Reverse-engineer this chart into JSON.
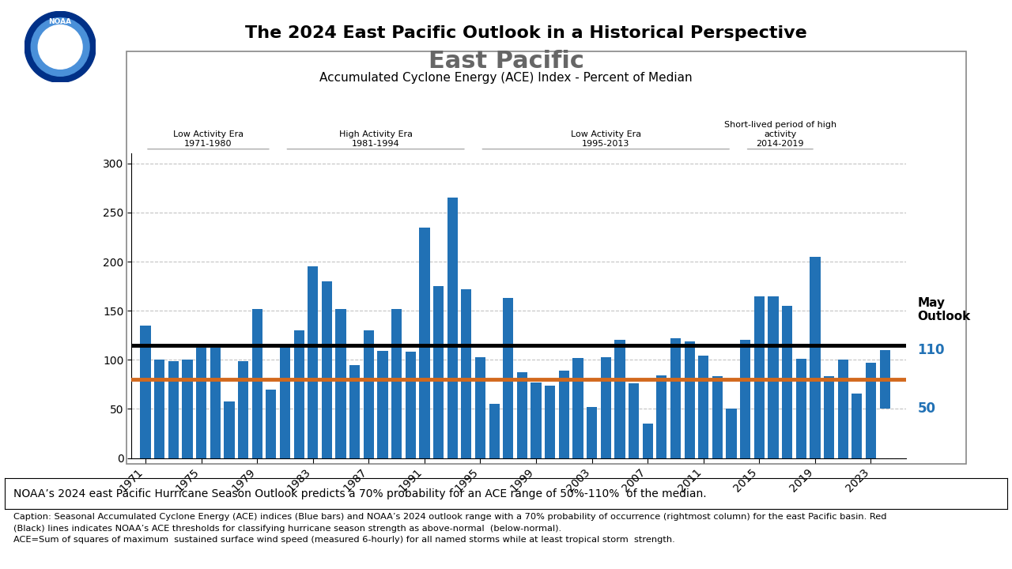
{
  "title_main": "The 2024 East Pacific Outlook in a Historical Perspective",
  "title_chart": "East Pacific",
  "subtitle_chart": "Accumulated Cyclone Energy (ACE) Index - Percent of Median",
  "years": [
    1971,
    1972,
    1973,
    1974,
    1975,
    1976,
    1977,
    1978,
    1979,
    1980,
    1981,
    1982,
    1983,
    1984,
    1985,
    1986,
    1987,
    1988,
    1989,
    1990,
    1991,
    1992,
    1993,
    1994,
    1995,
    1996,
    1997,
    1998,
    1999,
    2000,
    2001,
    2002,
    2003,
    2004,
    2005,
    2006,
    2007,
    2008,
    2009,
    2010,
    2011,
    2012,
    2013,
    2014,
    2015,
    2016,
    2017,
    2018,
    2019,
    2020,
    2021,
    2022,
    2023
  ],
  "values": [
    135,
    100,
    99,
    100,
    112,
    112,
    58,
    99,
    152,
    70,
    115,
    130,
    195,
    180,
    152,
    95,
    130,
    109,
    152,
    108,
    235,
    175,
    265,
    172,
    103,
    55,
    163,
    87,
    77,
    74,
    89,
    102,
    52,
    103,
    120,
    76,
    35,
    84,
    122,
    119,
    104,
    83,
    50,
    120,
    165,
    165,
    155,
    101,
    205,
    83,
    100,
    66,
    97
  ],
  "outlook_low": 50,
  "outlook_high": 110,
  "black_line": 115,
  "orange_line": 80,
  "bar_color": "#2171B5",
  "black_line_color": "#000000",
  "orange_line_color": "#D2691E",
  "ylim": [
    0,
    310
  ],
  "yticks": [
    0,
    50,
    100,
    150,
    200,
    250,
    300
  ],
  "era_labels": [
    {
      "text": "Low Activity Era\n1971-1980",
      "x_start": 1971,
      "x_end": 1980
    },
    {
      "text": "High Activity Era\n1981-1994",
      "x_start": 1981,
      "x_end": 1994
    },
    {
      "text": "Low Activity Era\n1995-2013",
      "x_start": 1995,
      "x_end": 2013
    },
    {
      "text": "Short-lived period of high\nactivity\n2014-2019",
      "x_start": 2014,
      "x_end": 2019
    }
  ],
  "bottom_text1": "NOAA’s 2024 east Pacific Hurricane Season Outlook predicts a 70% probability for an ACE range of 50%-110%  of the median.",
  "bottom_text2": "Caption: Seasonal Accumulated Cyclone Energy (ACE) indices (Blue bars) and NOAA’s 2024 outlook range with a 70% probability of occurrence (rightmost column) for the east Pacific basin. Red\n(Black) lines indicates NOAA’s ACE thresholds for classifying hurricane season strength as above-normal  (below-normal).\nACE=Sum of squares of maximum  sustained surface wind speed (measured 6-hourly) for all named storms while at least tropical storm  strength.",
  "xtick_years": [
    1971,
    1975,
    1979,
    1983,
    1987,
    1991,
    1995,
    1999,
    2003,
    2007,
    2011,
    2015,
    2019,
    2023
  ],
  "xlim": [
    1970.0,
    2025.5
  ]
}
